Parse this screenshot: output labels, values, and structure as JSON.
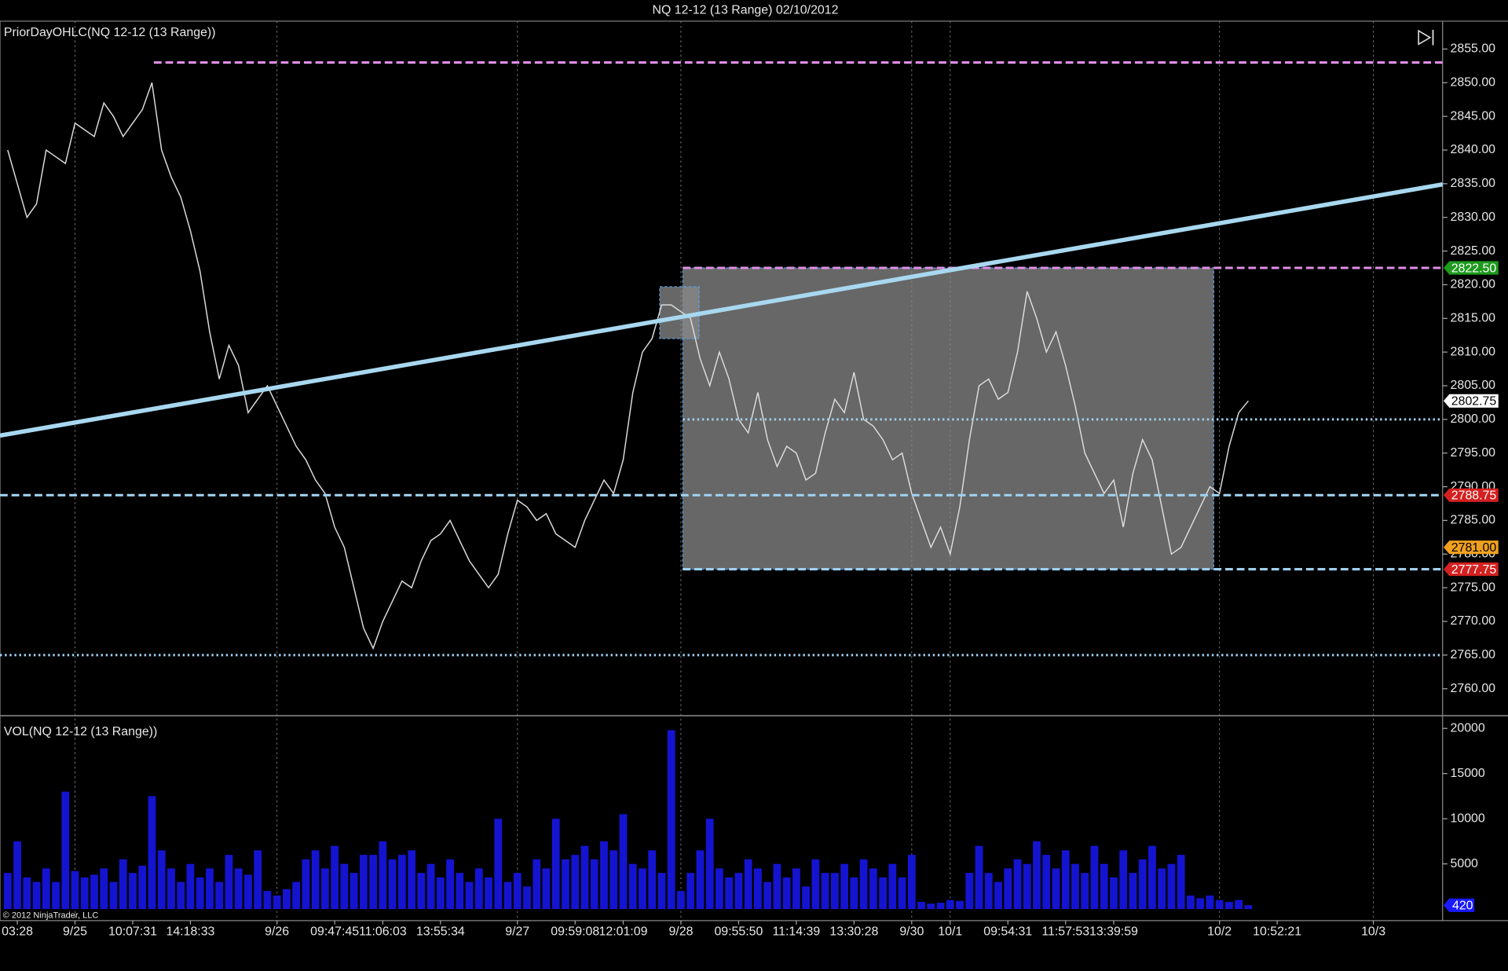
{
  "title": "NQ 12-12 (13 Range)  02/10/2012",
  "copyright": "© 2012 NinjaTrader, LLC",
  "chart_data": [
    {
      "type": "line",
      "title": "PriorDayOHLC(NQ 12-12 (13 Range))",
      "color": "#dcdcdc",
      "categories": [
        null,
        "03:28",
        null,
        null,
        null,
        null,
        null,
        "9/25",
        null,
        null,
        null,
        null,
        null,
        "10:07:31",
        null,
        null,
        null,
        null,
        null,
        "14:18:33",
        null,
        null,
        null,
        null,
        null,
        null,
        null,
        null,
        "9/26",
        null,
        null,
        null,
        null,
        null,
        "09:47:45",
        null,
        null,
        null,
        null,
        "11:06:03",
        null,
        null,
        null,
        null,
        null,
        "13:55:34",
        null,
        null,
        null,
        null,
        null,
        null,
        null,
        "9/27",
        null,
        null,
        null,
        null,
        null,
        "09:59:08",
        null,
        null,
        null,
        null,
        "12:01:09",
        null,
        null,
        null,
        null,
        null,
        "9/28",
        null,
        null,
        null,
        null,
        null,
        "09:55:50",
        null,
        null,
        null,
        null,
        null,
        "11:14:39",
        null,
        null,
        null,
        null,
        null,
        "13:30:28",
        null,
        null,
        null,
        null,
        null,
        "9/30",
        null,
        null,
        null,
        "10/1",
        null,
        null,
        null,
        null,
        null,
        "09:54:31",
        null,
        null,
        null,
        null,
        null,
        "11:57:53",
        null,
        null,
        null,
        null,
        "13:39:59",
        null,
        null,
        null,
        null,
        null,
        null,
        null,
        null,
        null,
        null,
        "10/2",
        null,
        null,
        null,
        null,
        null,
        "10:52:21",
        null,
        null,
        null,
        null,
        null,
        null,
        null,
        null,
        null,
        "10/3",
        null,
        null,
        null,
        null,
        null,
        null,
        null
      ],
      "values": [
        2840,
        2835,
        2830,
        2832,
        2840,
        2839,
        2838,
        2844,
        2843,
        2842,
        2847,
        2845,
        2842,
        2844,
        2846,
        2850,
        2840,
        2836,
        2833,
        2828,
        2822,
        2813,
        2806,
        2811,
        2808,
        2801,
        2803,
        2805,
        2802,
        2799,
        2796,
        2794,
        2791,
        2789,
        2784,
        2781,
        2775,
        2769,
        2766,
        2770,
        2773,
        2776,
        2775,
        2779,
        2782,
        2783,
        2785,
        2782,
        2779,
        2777,
        2775,
        2777,
        2783,
        2788,
        2787,
        2785,
        2786,
        2783,
        2782,
        2781,
        2785,
        2788,
        2791,
        2789,
        2794,
        2804,
        2810,
        2812,
        2817,
        2817,
        2816,
        2815,
        2809,
        2805,
        2810,
        2806,
        2800,
        2798,
        2804,
        2797,
        2793,
        2796,
        2795,
        2791,
        2792,
        2798,
        2803,
        2801,
        2807,
        2800,
        2799,
        2797,
        2794,
        2795,
        2789,
        2785,
        2781,
        2784,
        2780,
        2787,
        2797,
        2805,
        2806,
        2803,
        2804,
        2810,
        2819,
        2815,
        2810,
        2813,
        2808,
        2802,
        2795,
        2792,
        2789,
        2791,
        2784,
        2792,
        2797,
        2794,
        2787,
        2780,
        2781,
        2784,
        2787,
        2790,
        2789,
        2796,
        2801,
        2802.75,
        null,
        null,
        null,
        null,
        null,
        null,
        null,
        null,
        null,
        null,
        null,
        null,
        null,
        null,
        null,
        null,
        null,
        null,
        null,
        null
      ],
      "ylim": [
        2756,
        2859.14
      ],
      "yticks": [
        {
          "value": 2760,
          "label": "2760.00"
        },
        {
          "value": 2765,
          "label": "2765.00"
        },
        {
          "value": 2770,
          "label": "2770.00"
        },
        {
          "value": 2775,
          "label": "2775.00"
        },
        {
          "value": 2780,
          "label": "2780.00"
        },
        {
          "value": 2785,
          "label": "2785.00"
        },
        {
          "value": 2790,
          "label": "2790.00"
        },
        {
          "value": 2795,
          "label": "2795.00"
        },
        {
          "value": 2800,
          "label": "2800.00"
        },
        {
          "value": 2805,
          "label": "2805.00"
        },
        {
          "value": 2810,
          "label": "2810.00"
        },
        {
          "value": 2815,
          "label": "2815.00"
        },
        {
          "value": 2820,
          "label": "2820.00"
        },
        {
          "value": 2825,
          "label": "2825.00"
        },
        {
          "value": 2830,
          "label": "2830.00"
        },
        {
          "value": 2835,
          "label": "2835.00"
        },
        {
          "value": 2840,
          "label": "2840.00"
        },
        {
          "value": 2845,
          "label": "2845.00"
        },
        {
          "value": 2850,
          "label": "2850.00"
        },
        {
          "value": 2855,
          "label": "2855.00"
        }
      ],
      "levels": [
        {
          "value": 2853,
          "from": 15.2,
          "color": "#e08ee6",
          "style": "dashed"
        },
        {
          "value": 2822.5,
          "from": 70.2,
          "color": "#e08ee6",
          "style": "dashed"
        },
        {
          "value": 2800,
          "from": 70.2,
          "color": "#9fd0ee",
          "style": "dotted"
        },
        {
          "value": 2788.75,
          "from": -0.8,
          "color": "#9fd0ee",
          "style": "dashed"
        },
        {
          "value": 2777.75,
          "from": 70.2,
          "color": "#9fd0ee",
          "style": "dashed"
        },
        {
          "value": 2765,
          "from": -0.8,
          "color": "#9fd0ee",
          "style": "dotted"
        }
      ],
      "rectangles": [
        {
          "x0": 70.2,
          "x1": 125.4,
          "ymin": 2777.75,
          "ymax": 2822.5,
          "color": "#8a8a8a"
        },
        {
          "x0": 67.8,
          "x1": 71.9,
          "ymin": 2812,
          "ymax": 2819.7,
          "color": "#8a8a8a"
        }
      ],
      "trendline": {
        "x": [
          -0.8,
          149.2
        ],
        "y": [
          2797.6,
          2834.9
        ],
        "color": "#a8d8f0"
      },
      "price_markers": [
        {
          "value": 2822.5,
          "label": "2822.50",
          "color": "#1e9a1e",
          "text_color": "#ffffff"
        },
        {
          "value": 2802.75,
          "label": "2802.75",
          "color": "#ffffff",
          "text_color": "#000000"
        },
        {
          "value": 2788.75,
          "label": "2788.75",
          "color": "#d42020",
          "text_color": "#ffffff"
        },
        {
          "value": 2781,
          "label": "2781.00",
          "color": "#f0a020",
          "text_color": "#000000"
        },
        {
          "value": 2777.75,
          "label": "2777.75",
          "color": "#d42020",
          "text_color": "#ffffff"
        }
      ]
    },
    {
      "type": "bar",
      "title": "VOL(NQ 12-12 (13 Range))",
      "color": "#1414d0",
      "values": [
        4000,
        7500,
        3500,
        3000,
        4500,
        3000,
        13000,
        4200,
        3500,
        3800,
        4500,
        3000,
        5500,
        4000,
        4800,
        12500,
        6500,
        4500,
        3000,
        5000,
        3500,
        4500,
        3000,
        6000,
        4500,
        3800,
        6500,
        2000,
        1500,
        2200,
        3000,
        5500,
        6500,
        4500,
        7000,
        5000,
        4000,
        6000,
        6000,
        7500,
        5500,
        6000,
        6500,
        4000,
        5000,
        3500,
        5500,
        4000,
        3000,
        4500,
        3500,
        10000,
        3000,
        4000,
        2500,
        5500,
        4500,
        10000,
        5500,
        6000,
        7000,
        5500,
        7500,
        6500,
        10500,
        5000,
        4500,
        6500,
        4000,
        19800,
        2000,
        4000,
        6500,
        10000,
        4500,
        3500,
        4000,
        5500,
        4500,
        3000,
        5000,
        3500,
        4500,
        2500,
        5500,
        4000,
        4000,
        5000,
        3500,
        5500,
        4500,
        3500,
        5000,
        3500,
        6000,
        800,
        600,
        700,
        1000,
        900,
        4000,
        7000,
        4000,
        3000,
        4500,
        5500,
        5000,
        7500,
        6000,
        4500,
        6500,
        5000,
        4000,
        7000,
        5000,
        3500,
        6500,
        4000,
        5500,
        7000,
        4500,
        5000,
        6000,
        1500,
        1200,
        1500,
        1000,
        800,
        1000,
        420,
        null,
        null,
        null,
        null,
        null,
        null,
        null,
        null,
        null,
        null,
        null,
        null,
        null,
        null,
        null,
        null,
        null,
        null,
        null,
        null
      ],
      "ylim": [
        0,
        21300
      ],
      "yticks": [
        5000,
        10000,
        15000,
        20000
      ],
      "last_marker": {
        "value": 420,
        "color": "#1a1aff",
        "text_color": "#ffffff"
      }
    }
  ]
}
